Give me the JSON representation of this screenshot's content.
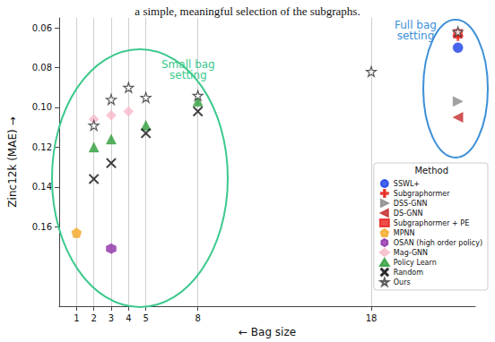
{
  "chart_data": {
    "type": "scatter",
    "title": "a simple, meaningful selection of the subgraphs.",
    "x_label": "← Bag size",
    "y_label": "Zinc12k (MAE) →",
    "xlim": [
      0,
      24
    ],
    "xticks": [
      1,
      2,
      3,
      4,
      5,
      8,
      18
    ],
    "ylim": [
      0.2,
      0.055
    ],
    "yticks": [
      0.06,
      0.08,
      {
        "value": 0.1,
        "label": "0.10"
      },
      0.12,
      0.14,
      0.16
    ],
    "grid": true,
    "legend": "lower right",
    "legend_title": "Method",
    "annotations": [
      {
        "text": "Small bag\nsetting",
        "color": "#3cc98c"
      },
      {
        "text": "Full bag\nsetting",
        "color": "#3d8fd8"
      }
    ],
    "series": [
      {
        "name": "SSWL+",
        "color": "#1a3fe6",
        "marker": "circle",
        "x": [
          23
        ],
        "values": [
          0.07
        ]
      },
      {
        "name": "Subgraphormer",
        "color": "#e8201c",
        "marker": "plus",
        "x": [
          23
        ],
        "values": [
          0.064
        ]
      },
      {
        "name": "DSS-GNN",
        "color": "#8a8a8a",
        "marker": "triangle-right",
        "x": [
          23
        ],
        "values": [
          0.097
        ]
      },
      {
        "name": "DS-GNN",
        "color": "#c62a2a",
        "marker": "triangle-left",
        "x": [
          23
        ],
        "values": [
          0.105
        ]
      },
      {
        "name": "Subgraphormer + PE",
        "color": "#e8201c",
        "marker": "square",
        "x": [
          23
        ],
        "values": [
          0.063
        ]
      },
      {
        "name": "MPNN",
        "color": "#f5a623",
        "marker": "pentagon",
        "x": [
          1
        ],
        "values": [
          0.163
        ]
      },
      {
        "name": "OSAN (high order policy)",
        "color": "#8e2fa8",
        "marker": "hexagon",
        "x": [
          3
        ],
        "values": [
          0.171
        ]
      },
      {
        "name": "Mag-GNN",
        "color": "#f7b8c8",
        "marker": "diamond",
        "x": [
          2,
          3,
          4
        ],
        "values": [
          0.106,
          0.104,
          0.102
        ]
      },
      {
        "name": "Policy Learn",
        "color": "#2e9e3a",
        "marker": "triangle-up",
        "x": [
          2,
          3,
          5,
          8
        ],
        "values": [
          0.12,
          0.116,
          0.109,
          0.097
        ]
      },
      {
        "name": "Random",
        "color": "#111111",
        "marker": "x",
        "x": [
          2,
          3,
          5,
          8
        ],
        "values": [
          0.136,
          0.128,
          0.113,
          0.102
        ]
      },
      {
        "name": "Ours",
        "color": "#333333",
        "marker": "star",
        "x": [
          2,
          3,
          4,
          5,
          8,
          18,
          23
        ],
        "values": [
          0.109,
          0.096,
          0.09,
          0.095,
          0.094,
          0.082,
          0.062
        ]
      }
    ]
  }
}
